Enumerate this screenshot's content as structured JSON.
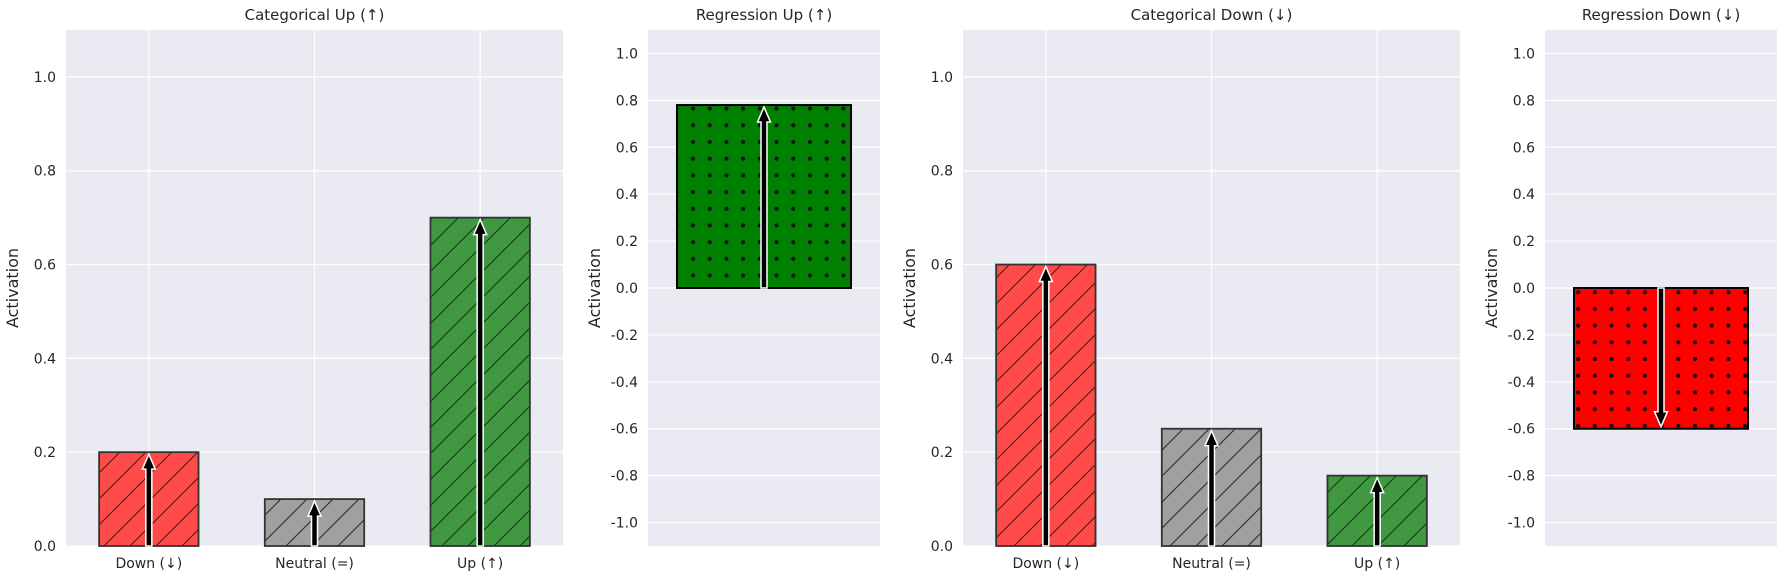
{
  "chart_data": [
    {
      "type": "bar",
      "title": "Categorical Up (↑)",
      "ylabel": "Activation",
      "xlabel": "",
      "ylim": [
        0,
        1.1
      ],
      "yticks": [
        0.0,
        0.2,
        0.4,
        0.6,
        0.8,
        1.0
      ],
      "ytick_labels": [
        "0.0",
        "0.2",
        "0.4",
        "0.6",
        "0.8",
        "1.0"
      ],
      "categories": [
        "Down (↓)",
        "Neutral (=)",
        "Up (↑)"
      ],
      "values": [
        0.2,
        0.1,
        0.7
      ],
      "colors": [
        "#ff4a4a",
        "#a0a0a0",
        "#409940"
      ],
      "hatch": "diagonal",
      "arrows": "up",
      "grid": true
    },
    {
      "type": "bar",
      "title": "Regression Up (↑)",
      "ylabel": "Activation",
      "xlabel": "",
      "ylim": [
        -1.1,
        1.1
      ],
      "yticks": [
        -1.0,
        -0.8,
        -0.6,
        -0.4,
        -0.2,
        0.0,
        0.2,
        0.4,
        0.6,
        0.8,
        1.0
      ],
      "ytick_labels": [
        "-1.0",
        "-0.8",
        "-0.6",
        "-0.4",
        "-0.2",
        "0.0",
        "0.2",
        "0.4",
        "0.6",
        "0.8",
        "1.0"
      ],
      "categories": [
        ""
      ],
      "values": [
        0.78
      ],
      "colors": [
        "#008000"
      ],
      "hatch": "dots",
      "arrows": "up",
      "grid": true
    },
    {
      "type": "bar",
      "title": "Categorical Down (↓)",
      "ylabel": "Activation",
      "xlabel": "",
      "ylim": [
        0,
        1.1
      ],
      "yticks": [
        0.0,
        0.2,
        0.4,
        0.6,
        0.8,
        1.0
      ],
      "ytick_labels": [
        "0.0",
        "0.2",
        "0.4",
        "0.6",
        "0.8",
        "1.0"
      ],
      "categories": [
        "Down (↓)",
        "Neutral (=)",
        "Up (↑)"
      ],
      "values": [
        0.6,
        0.25,
        0.15
      ],
      "colors": [
        "#ff4a4a",
        "#a0a0a0",
        "#409940"
      ],
      "hatch": "diagonal",
      "arrows": "up",
      "grid": true
    },
    {
      "type": "bar",
      "title": "Regression Down (↓)",
      "ylabel": "Activation",
      "xlabel": "",
      "ylim": [
        -1.1,
        1.1
      ],
      "yticks": [
        -1.0,
        -0.8,
        -0.6,
        -0.4,
        -0.2,
        0.0,
        0.2,
        0.4,
        0.6,
        0.8,
        1.0
      ],
      "ytick_labels": [
        "-1.0",
        "-0.8",
        "-0.6",
        "-0.4",
        "-0.2",
        "0.0",
        "0.2",
        "0.4",
        "0.6",
        "0.8",
        "1.0"
      ],
      "categories": [
        ""
      ],
      "values": [
        -0.6
      ],
      "colors": [
        "#ff0000"
      ],
      "hatch": "dots",
      "arrows": "down",
      "grid": true
    }
  ],
  "style": {
    "plot_background": "#eaeaf2",
    "grid_color": "#ffffff",
    "text_color": "#262626"
  }
}
